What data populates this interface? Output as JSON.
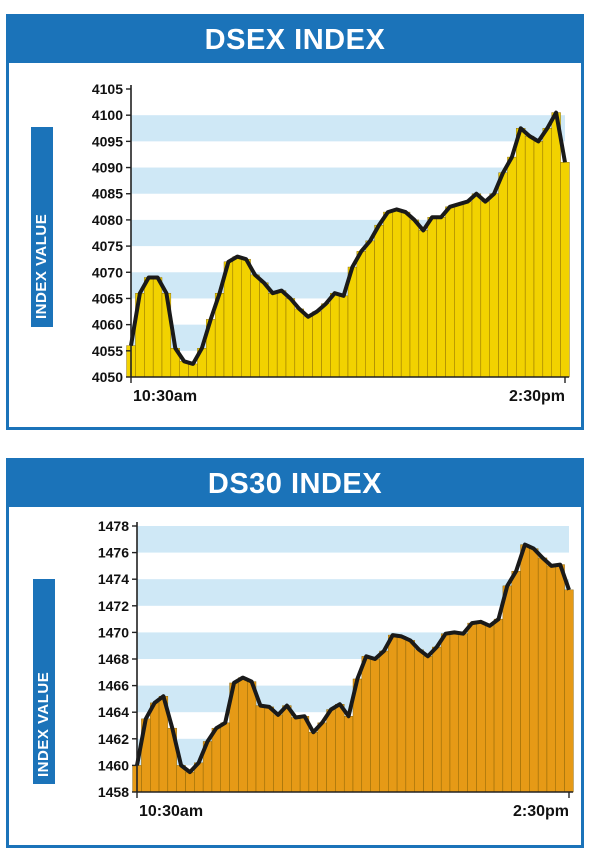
{
  "chart_data": [
    {
      "type": "area",
      "title": "DSEX INDEX",
      "xlabel": "",
      "ylabel": "INDEX VALUE",
      "ylim": [
        4050,
        4105
      ],
      "yticks": [
        4050,
        4055,
        4060,
        4065,
        4070,
        4075,
        4080,
        4085,
        4090,
        4095,
        4100,
        4105
      ],
      "xtick_labels": [
        "10:30am",
        "2:30pm"
      ],
      "fill_color": "#f2d200",
      "band_color": "#cfe8f6",
      "x": [
        0,
        1,
        2,
        3,
        4,
        5,
        6,
        7,
        8,
        9,
        10,
        11,
        12,
        13,
        14,
        15,
        16,
        17,
        18,
        19,
        20,
        21,
        22,
        23,
        24,
        25,
        26,
        27,
        28,
        29,
        30,
        31,
        32,
        33,
        34,
        35,
        36,
        37,
        38,
        39,
        40,
        41,
        42,
        43,
        44,
        45,
        46,
        47,
        48,
        49
      ],
      "values": [
        4056,
        4066,
        4069,
        4069,
        4066,
        4055.5,
        4053,
        4052.5,
        4055.5,
        4061,
        4066,
        4072,
        4073,
        4072.5,
        4069.5,
        4068,
        4066,
        4066.5,
        4065,
        4063,
        4061.5,
        4062.5,
        4064,
        4066,
        4065.5,
        4071,
        4074,
        4076,
        4079,
        4081.5,
        4082,
        4081.5,
        4080,
        4078,
        4080.5,
        4080.5,
        4082.5,
        4083,
        4083.5,
        4085,
        4083.5,
        4085,
        4089,
        4092,
        4097.5,
        4096,
        4095,
        4097.5,
        4100.5,
        4091
      ]
    },
    {
      "type": "area",
      "title": "DS30 INDEX",
      "xlabel": "",
      "ylabel": "INDEX VALUE",
      "ylim": [
        1458,
        1478
      ],
      "yticks": [
        1458,
        1460,
        1462,
        1464,
        1466,
        1468,
        1470,
        1472,
        1474,
        1476,
        1478
      ],
      "xtick_labels": [
        "10:30am",
        "2:30pm"
      ],
      "fill_color": "#e69a16",
      "band_color": "#cfe8f6",
      "x": [
        0,
        1,
        2,
        3,
        4,
        5,
        6,
        7,
        8,
        9,
        10,
        11,
        12,
        13,
        14,
        15,
        16,
        17,
        18,
        19,
        20,
        21,
        22,
        23,
        24,
        25,
        26,
        27,
        28,
        29,
        30,
        31,
        32,
        33,
        34,
        35,
        36,
        37,
        38,
        39,
        40,
        41,
        42,
        43,
        44,
        45,
        46,
        47,
        48,
        49
      ],
      "values": [
        1460,
        1463.5,
        1464.7,
        1465.2,
        1462.8,
        1460,
        1459.5,
        1460.2,
        1461.8,
        1462.8,
        1463.2,
        1466.2,
        1466.6,
        1466.3,
        1464.5,
        1464.4,
        1463.8,
        1464.5,
        1463.6,
        1463.7,
        1462.5,
        1463.2,
        1464.2,
        1464.6,
        1463.7,
        1466.5,
        1468.2,
        1468,
        1468.6,
        1469.8,
        1469.7,
        1469.4,
        1468.7,
        1468.2,
        1468.9,
        1469.9,
        1470,
        1469.9,
        1470.7,
        1470.8,
        1470.5,
        1471,
        1473.5,
        1474.6,
        1476.6,
        1476.3,
        1475.6,
        1475,
        1475.1,
        1473.2
      ]
    }
  ]
}
